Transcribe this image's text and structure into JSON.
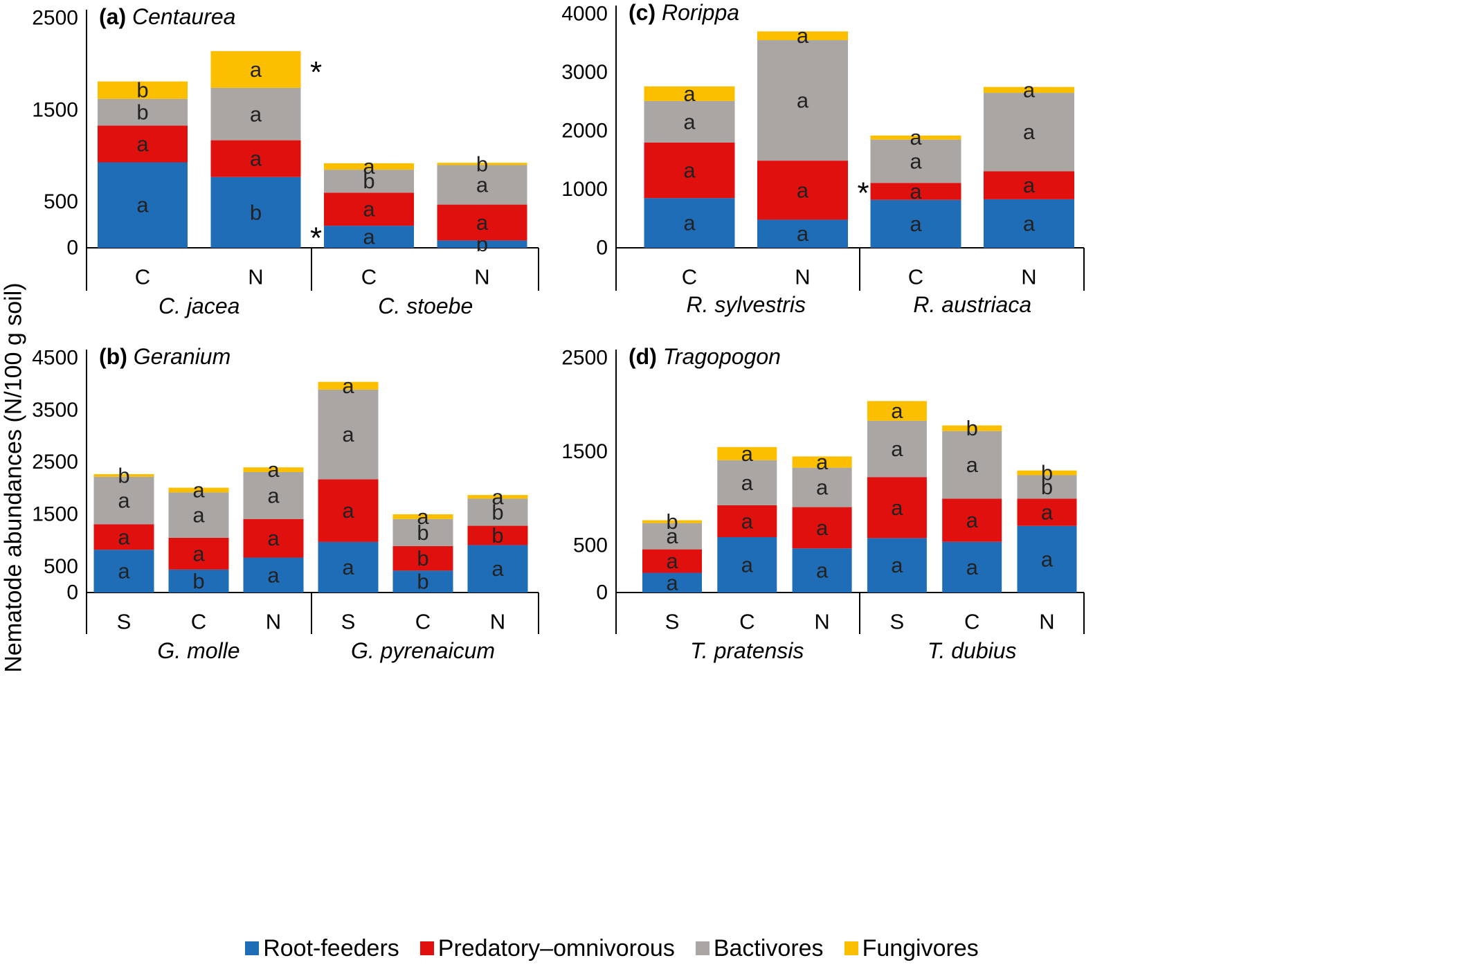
{
  "y_axis_label": "Nematode abundances (N/100 g soil)",
  "legend": [
    {
      "label": "Root-feeders",
      "color": "#1f6db6"
    },
    {
      "label": "Predatory–omnivorous",
      "color": "#e0100f"
    },
    {
      "label": "Bactivores",
      "color": "#a9a6a3"
    },
    {
      "label": "Fungivores",
      "color": "#fcbf00"
    }
  ],
  "chart_data": [
    {
      "type": "bar",
      "stacked": true,
      "panel_letter": "(a)",
      "genus": "Centaurea",
      "yticks": [
        0,
        500,
        1500,
        2500
      ],
      "ylim": [
        0,
        2500
      ],
      "categories": [
        "C",
        "N",
        "C",
        "N"
      ],
      "groups": [
        {
          "label": "C. jacea",
          "size": 2
        },
        {
          "label": "C. stoebe",
          "size": 2
        }
      ],
      "series": [
        {
          "name": "Root-feeders",
          "values": [
            930,
            770,
            240,
            80
          ],
          "letters": [
            "a",
            "b",
            "a",
            "b"
          ]
        },
        {
          "name": "Predatory–omnivorous",
          "values": [
            400,
            400,
            360,
            390
          ],
          "letters": [
            "a",
            "a",
            "a",
            "a"
          ]
        },
        {
          "name": "Bactivores",
          "values": [
            290,
            570,
            250,
            430
          ],
          "letters": [
            "b",
            "a",
            "b",
            "a"
          ]
        },
        {
          "name": "Fungivores",
          "values": [
            190,
            400,
            70,
            25
          ],
          "letters": [
            "b",
            "a",
            "a",
            "b"
          ]
        }
      ],
      "annotations": [
        {
          "text": "*",
          "near_category": 1,
          "series": "Fungivores"
        },
        {
          "text": "*",
          "near_category": 1,
          "series": "Root-feeders"
        }
      ]
    },
    {
      "type": "bar",
      "stacked": true,
      "panel_letter": "(b)",
      "genus": "Geranium",
      "yticks": [
        0,
        500,
        1500,
        2500,
        3500,
        4500
      ],
      "ylim": [
        0,
        4500
      ],
      "categories": [
        "S",
        "C",
        "N",
        "S",
        "C",
        "N"
      ],
      "groups": [
        {
          "label": "G. molle",
          "size": 3
        },
        {
          "label": "G. pyrenaicum",
          "size": 3
        }
      ],
      "series": [
        {
          "name": "Root-feeders",
          "values": [
            820,
            440,
            670,
            970,
            420,
            910
          ],
          "letters": [
            "a",
            "b",
            "a",
            "a",
            "b",
            "a"
          ]
        },
        {
          "name": "Predatory–omnivorous",
          "values": [
            490,
            610,
            740,
            1200,
            470,
            370
          ],
          "letters": [
            "a",
            "a",
            "a",
            "a",
            "b",
            "b"
          ]
        },
        {
          "name": "Bactivores",
          "values": [
            910,
            870,
            900,
            1720,
            520,
            520
          ],
          "letters": [
            "a",
            "a",
            "a",
            "a",
            "b",
            "b"
          ]
        },
        {
          "name": "Fungivores",
          "values": [
            50,
            90,
            90,
            150,
            90,
            70
          ],
          "letters": [
            "b",
            "a",
            "a",
            "a",
            "a",
            "a"
          ]
        }
      ],
      "annotations": []
    },
    {
      "type": "bar",
      "stacked": true,
      "panel_letter": "(c)",
      "genus": "Rorippa",
      "yticks": [
        0,
        1000,
        2000,
        3000,
        4000
      ],
      "ylim": [
        0,
        4000
      ],
      "categories": [
        "C",
        "N",
        "C",
        "N"
      ],
      "groups": [
        {
          "label": "R. sylvestris",
          "size": 2
        },
        {
          "label": "R. austriaca",
          "size": 2
        }
      ],
      "series": [
        {
          "name": "Root-feeders",
          "values": [
            850,
            480,
            820,
            830
          ],
          "letters": [
            "a",
            "a",
            "a",
            "a"
          ]
        },
        {
          "name": "Predatory–omnivorous",
          "values": [
            950,
            1010,
            290,
            480
          ],
          "letters": [
            "a",
            "a",
            "a",
            "a"
          ]
        },
        {
          "name": "Bactivores",
          "values": [
            710,
            2060,
            740,
            1340
          ],
          "letters": [
            "a",
            "a",
            "a",
            "a"
          ]
        },
        {
          "name": "Fungivores",
          "values": [
            250,
            150,
            70,
            100
          ],
          "letters": [
            "a",
            "a",
            "a",
            "a"
          ]
        }
      ],
      "annotations": [
        {
          "text": "*",
          "near_category": 1,
          "series": "Predatory–omnivorous"
        }
      ]
    },
    {
      "type": "bar",
      "stacked": true,
      "panel_letter": "(d)",
      "genus": "Tragopogon",
      "yticks": [
        0,
        500,
        1500,
        2500
      ],
      "ylim": [
        0,
        2500
      ],
      "categories": [
        "S",
        "C",
        "N",
        "S",
        "C",
        "N"
      ],
      "groups": [
        {
          "label": "T. pratensis",
          "size": 3
        },
        {
          "label": "T. dubius",
          "size": 3
        }
      ],
      "series": [
        {
          "name": "Root-feeders",
          "values": [
            210,
            590,
            470,
            580,
            540,
            710
          ],
          "letters": [
            "a",
            "a",
            "a",
            "a",
            "a",
            "a"
          ]
        },
        {
          "name": "Predatory–omnivorous",
          "values": [
            250,
            340,
            440,
            650,
            460,
            290
          ],
          "letters": [
            "a",
            "a",
            "a",
            "a",
            "a",
            "a"
          ]
        },
        {
          "name": "Bactivores",
          "values": [
            280,
            480,
            420,
            600,
            720,
            250
          ],
          "letters": [
            "a",
            "a",
            "a",
            "a",
            "a",
            "b"
          ]
        },
        {
          "name": "Fungivores",
          "values": [
            30,
            140,
            120,
            210,
            60,
            50
          ],
          "letters": [
            "b",
            "a",
            "a",
            "a",
            "b",
            "b"
          ]
        }
      ],
      "annotations": []
    }
  ]
}
